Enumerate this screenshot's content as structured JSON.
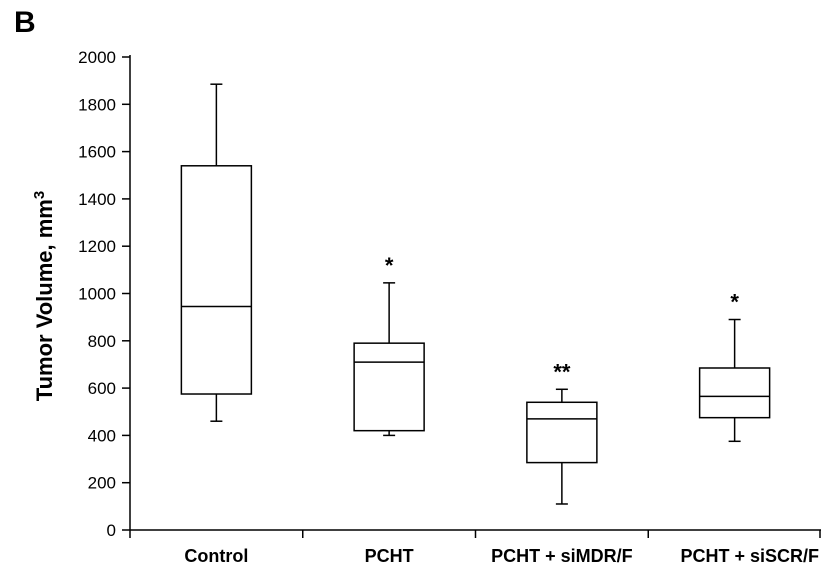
{
  "figure": {
    "panel_label": "B"
  },
  "chart_data": {
    "type": "box",
    "title": "",
    "xlabel": "",
    "ylabel": "Tumor Volume, mm",
    "ylabel_superscript": "3",
    "ylim": [
      0,
      2000
    ],
    "yticks": [
      0,
      200,
      400,
      600,
      800,
      1000,
      1200,
      1400,
      1600,
      1800,
      2000
    ],
    "grid": false,
    "categories": [
      "Control",
      "PCHT",
      "PCHT + siMDR/F",
      "PCHT + siSCR/F"
    ],
    "boxes": [
      {
        "category": "Control",
        "whisker_low": 460,
        "q1": 575,
        "median": 945,
        "q3": 1540,
        "whisker_high": 1885,
        "annotation": ""
      },
      {
        "category": "PCHT",
        "whisker_low": 400,
        "q1": 420,
        "median": 710,
        "q3": 790,
        "whisker_high": 1045,
        "annotation": "*"
      },
      {
        "category": "PCHT + siMDR/F",
        "whisker_low": 110,
        "q1": 285,
        "median": 470,
        "q3": 540,
        "whisker_high": 595,
        "annotation": "**"
      },
      {
        "category": "PCHT + siSCR/F",
        "whisker_low": 375,
        "q1": 475,
        "median": 565,
        "q3": 685,
        "whisker_high": 890,
        "annotation": "*"
      }
    ],
    "colors": {
      "stroke": "#000000",
      "fill": "#ffffff"
    }
  }
}
